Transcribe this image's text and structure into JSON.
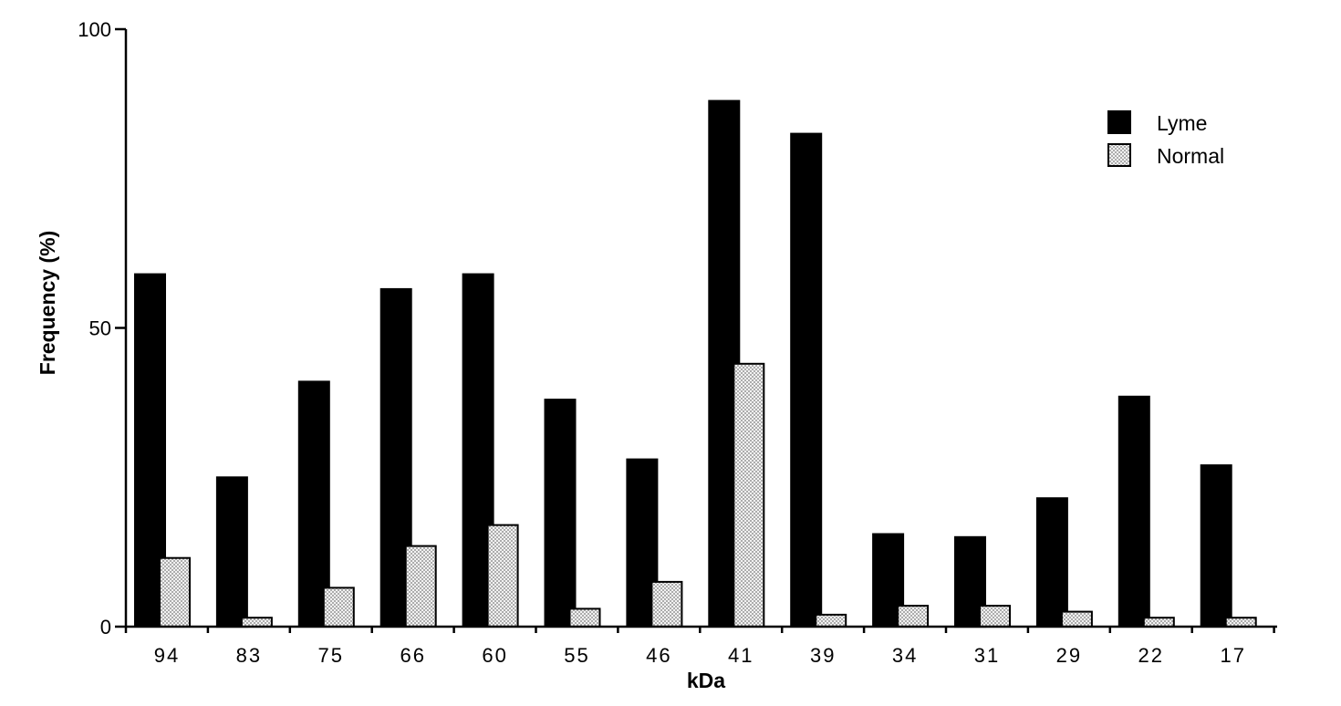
{
  "chart_data": {
    "type": "bar",
    "title": "",
    "xlabel": "kDa",
    "ylabel": "Frequency (%)",
    "ylim": [
      0,
      100
    ],
    "yticks": [
      0,
      50,
      100
    ],
    "categories": [
      "94",
      "83",
      "75",
      "66",
      "60",
      "55",
      "46",
      "41",
      "39",
      "34",
      "31",
      "29",
      "22",
      "17"
    ],
    "series": [
      {
        "name": "Lyme",
        "color": "#000000",
        "pattern": "solid",
        "values": [
          59,
          25,
          41,
          56.5,
          59,
          38,
          28,
          88,
          82.5,
          15.5,
          15,
          21.5,
          38.5,
          27
        ]
      },
      {
        "name": "Normal",
        "color": "#d4d4d4",
        "pattern": "stippled",
        "values": [
          11.5,
          1.5,
          6.5,
          13.5,
          17,
          3,
          7.5,
          44,
          2,
          3.5,
          3.5,
          2.5,
          1.5,
          1.5
        ]
      }
    ],
    "legend": "top-right",
    "grid": false
  }
}
